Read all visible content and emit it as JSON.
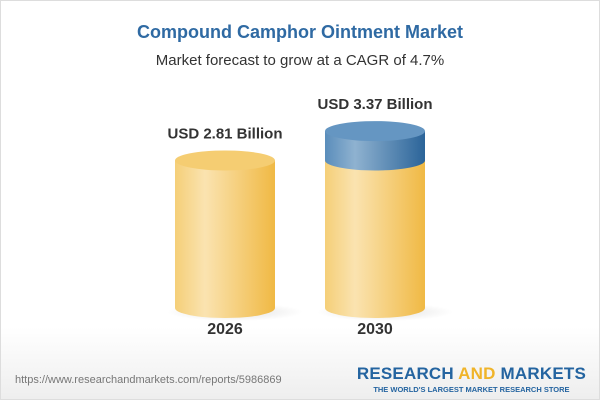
{
  "title": "Compound Camphor Ointment Market",
  "subtitle": "Market forecast to grow at a CAGR of 4.7%",
  "footer": {
    "url": "https://www.researchandmarkets.com/reports/5986869",
    "logo_part1": "RESEARCH ",
    "logo_part2": "AND",
    "logo_part3": " MARKETS",
    "logo_tagline": "THE WORLD'S LARGEST MARKET RESEARCH STORE"
  },
  "colors": {
    "bar": "#f3c25a",
    "growth": "#4f86b5",
    "title": "#2f6aa3"
  },
  "chart_data": {
    "type": "bar",
    "style": "3d-cylinder",
    "categories": [
      "2026",
      "2030"
    ],
    "values": [
      2.81,
      3.37
    ],
    "unit": "USD Billion",
    "data_labels": [
      "USD 2.81 Billion",
      "USD 3.37 Billion"
    ],
    "title": "Compound Camphor Ointment Market",
    "subtitle": "Market forecast to grow at a CAGR of 4.7%",
    "grid": false,
    "legend": "none"
  }
}
